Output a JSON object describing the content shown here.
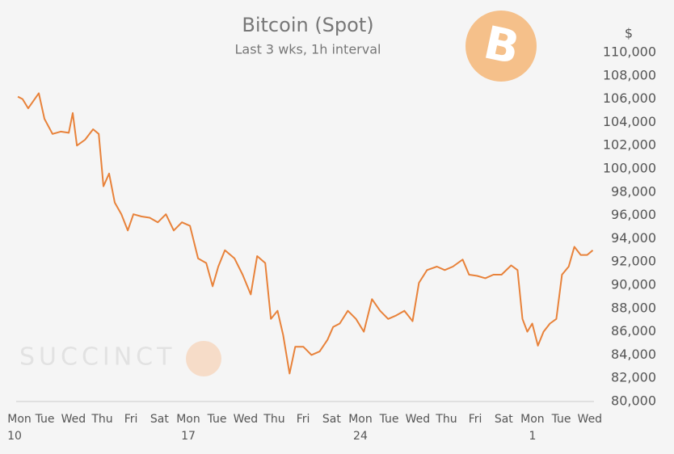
{
  "chart_data": {
    "type": "line",
    "title": "Bitcoin (Spot)",
    "subtitle": "Last 3 wks, 1h interval",
    "y_unit": "$",
    "watermark": "SUCCINCT",
    "logo": "B",
    "color": "#e8823a",
    "x": [
      0.07,
      0.26,
      0.49,
      0.92,
      1.15,
      1.48,
      1.81,
      2.14,
      2.3,
      2.47,
      2.8,
      3.13,
      3.36,
      3.55,
      3.78,
      4.01,
      4.28,
      4.54,
      4.77,
      5.1,
      5.43,
      5.76,
      6.09,
      6.41,
      6.74,
      7.07,
      7.4,
      7.73,
      7.99,
      8.22,
      8.49,
      8.88,
      9.21,
      9.54,
      9.8,
      10.13,
      10.36,
      10.63,
      10.86,
      11.12,
      11.35,
      11.68,
      12.01,
      12.34,
      12.66,
      12.89,
      13.16,
      13.49,
      13.82,
      14.14,
      14.47,
      14.8,
      15.13,
      15.46,
      15.79,
      16.12,
      16.38,
      16.71,
      17.11,
      17.43,
      17.76,
      18.16,
      18.42,
      18.75,
      19.08,
      19.41,
      19.74,
      20.13,
      20.39,
      20.59,
      20.79,
      20.99,
      21.22,
      21.45,
      21.71,
      21.97,
      22.2,
      22.47,
      22.7,
      22.96,
      23.22,
      23.45
    ],
    "values": [
      106200,
      106000,
      105200,
      106500,
      104300,
      103000,
      103200,
      103100,
      104800,
      102000,
      102500,
      103400,
      103000,
      98500,
      99600,
      97100,
      96100,
      94700,
      96100,
      95900,
      95800,
      95400,
      96100,
      94700,
      95400,
      95100,
      92300,
      91900,
      89900,
      91600,
      93000,
      92300,
      90900,
      89200,
      92500,
      91900,
      87100,
      87800,
      85700,
      82400,
      84700,
      84700,
      84000,
      84300,
      85300,
      86400,
      86700,
      87800,
      87100,
      86000,
      88800,
      87800,
      87100,
      87400,
      87800,
      86900,
      90200,
      91300,
      91600,
      91300,
      91600,
      92200,
      90900,
      90800,
      90600,
      90900,
      90900,
      91700,
      91300,
      87100,
      86000,
      86700,
      84800,
      86000,
      86700,
      87100,
      90900,
      91600,
      93300,
      92600,
      92600,
      93000
    ],
    "xlim": [
      0,
      23.5
    ],
    "xticks": [
      {
        "value": 0,
        "label": "Mon",
        "date": "10"
      },
      {
        "value": 1.17,
        "label": "Tue"
      },
      {
        "value": 2.33,
        "label": "Wed"
      },
      {
        "value": 3.5,
        "label": "Thu"
      },
      {
        "value": 4.67,
        "label": "Fri"
      },
      {
        "value": 5.83,
        "label": "Sat"
      },
      {
        "value": 7,
        "label": "Mon",
        "date": "17"
      },
      {
        "value": 8.17,
        "label": "Tue"
      },
      {
        "value": 9.33,
        "label": "Wed"
      },
      {
        "value": 10.5,
        "label": "Thu"
      },
      {
        "value": 11.67,
        "label": "Fri"
      },
      {
        "value": 12.83,
        "label": "Sat"
      },
      {
        "value": 14,
        "label": "Mon",
        "date": "24"
      },
      {
        "value": 15.17,
        "label": "Tue"
      },
      {
        "value": 16.33,
        "label": "Wed"
      },
      {
        "value": 17.5,
        "label": "Thu"
      },
      {
        "value": 18.67,
        "label": "Fri"
      },
      {
        "value": 19.83,
        "label": "Sat"
      },
      {
        "value": 21,
        "label": "Mon",
        "date": "1"
      },
      {
        "value": 22.17,
        "label": "Tue"
      },
      {
        "value": 23.33,
        "label": "Wed"
      }
    ],
    "ylim": [
      80000,
      110000
    ],
    "yticks": [
      {
        "value": 80000,
        "label": "80,000"
      },
      {
        "value": 82000,
        "label": "82,000"
      },
      {
        "value": 84000,
        "label": "84,000"
      },
      {
        "value": 86000,
        "label": "86,000"
      },
      {
        "value": 88000,
        "label": "88,000"
      },
      {
        "value": 90000,
        "label": "90,000"
      },
      {
        "value": 92000,
        "label": "92,000"
      },
      {
        "value": 94000,
        "label": "94,000"
      },
      {
        "value": 96000,
        "label": "96,000"
      },
      {
        "value": 98000,
        "label": "98,000"
      },
      {
        "value": 100000,
        "label": "100,000"
      },
      {
        "value": 102000,
        "label": "102,000"
      },
      {
        "value": 104000,
        "label": "104,000"
      },
      {
        "value": 106000,
        "label": "106,000"
      },
      {
        "value": 108000,
        "label": "108,000"
      },
      {
        "value": 110000,
        "label": "110,000"
      }
    ]
  }
}
